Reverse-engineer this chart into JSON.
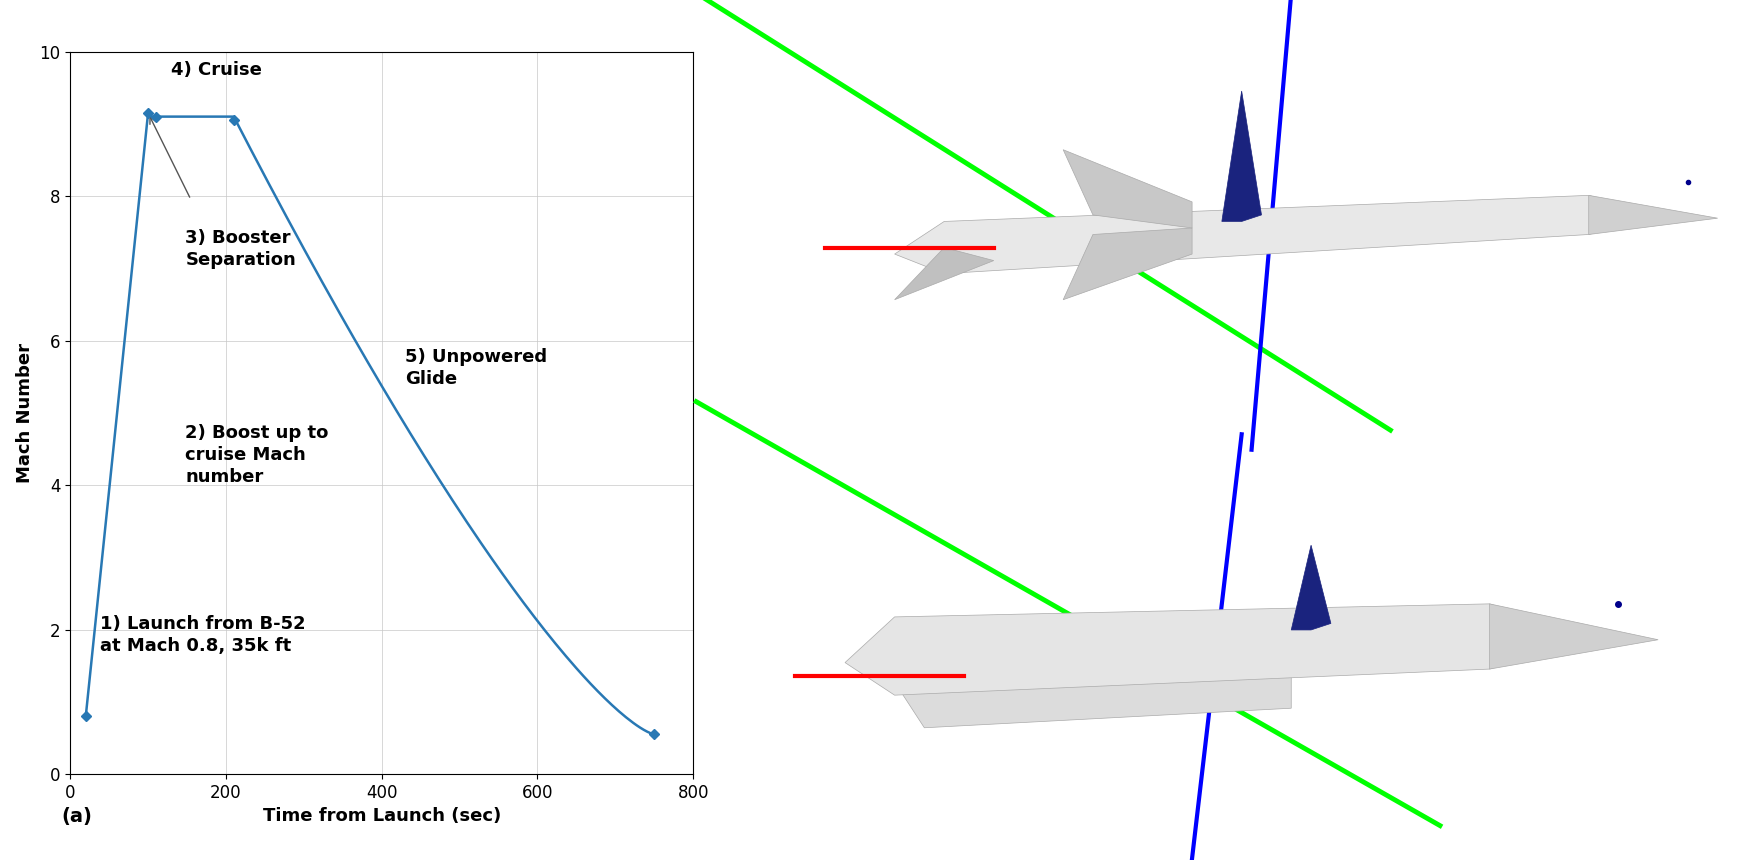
{
  "line_color": "#2878b4",
  "line_width": 1.8,
  "marker_style": "D",
  "marker_size": 5,
  "marker_color": "#2878b4",
  "background_color": "#ffffff",
  "grid_color": "#c8c8c8",
  "xlabel": "Time from Launch (sec)",
  "ylabel": "Mach Number",
  "xlim": [
    0,
    800
  ],
  "ylim": [
    0,
    10
  ],
  "xticks": [
    0,
    200,
    400,
    600,
    800
  ],
  "yticks": [
    0,
    2,
    4,
    6,
    8,
    10
  ],
  "panel_label": "(a)",
  "key_points_x": [
    20,
    100,
    110,
    210,
    750
  ],
  "key_points_y": [
    0.8,
    9.15,
    9.1,
    9.05,
    0.55
  ],
  "sky_blue": "#87CEEB",
  "black": "#000000",
  "white": "#ffffff",
  "dark_navy": "#1a237e",
  "lime_green": "#00ff00",
  "pure_blue": "#0000ff",
  "pure_red": "#ff0000"
}
